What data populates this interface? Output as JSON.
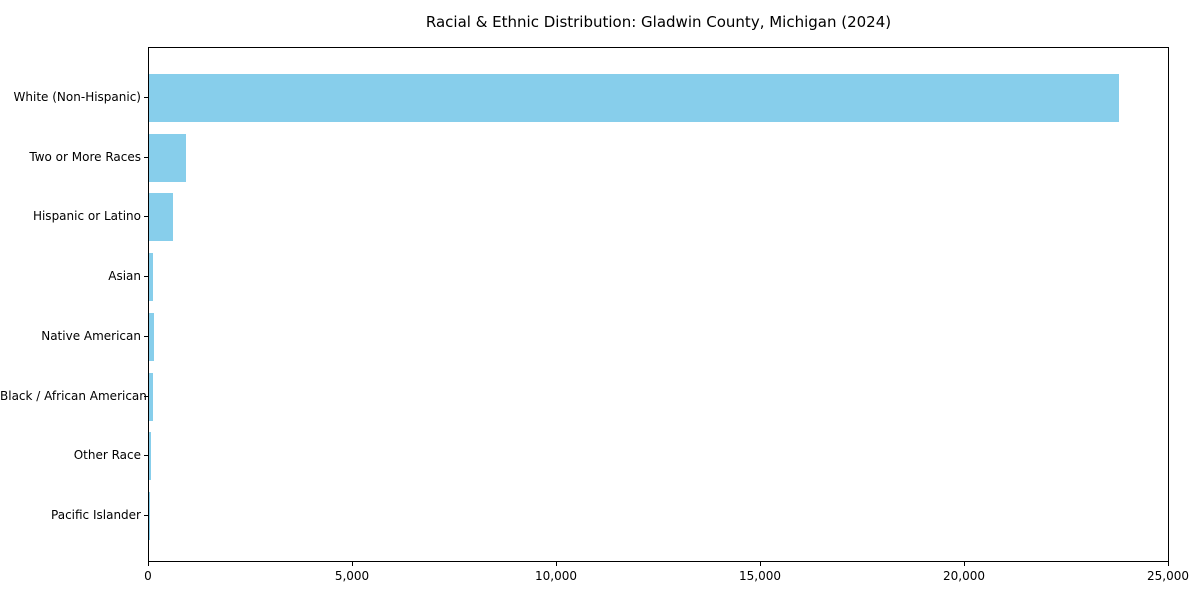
{
  "title": "Racial & Ethnic Distribution: Gladwin County, Michigan (2024)",
  "colors": {
    "bar": "#87CEEB",
    "axis": "#000000",
    "background": "#FFFFFF",
    "text": "#000000"
  },
  "chart_data": {
    "type": "bar",
    "orientation": "horizontal",
    "title": "Racial & Ethnic Distribution: Gladwin County, Michigan (2024)",
    "categories": [
      "White (Non-Hispanic)",
      "Two or More Races",
      "Hispanic or Latino",
      "Asian",
      "Native American",
      "Black / African American",
      "Other Race",
      "Pacific Islander"
    ],
    "values": [
      23800,
      920,
      580,
      105,
      120,
      90,
      60,
      10
    ],
    "xlabel": "",
    "ylabel": "",
    "xlim": [
      0,
      25000
    ],
    "x_ticks": [
      0,
      5000,
      10000,
      15000,
      20000,
      25000
    ],
    "x_tick_labels": [
      "0",
      "5,000",
      "10,000",
      "15,000",
      "20,000",
      "25,000"
    ],
    "bar_color": "#87CEEB",
    "grid": false,
    "legend": false
  }
}
